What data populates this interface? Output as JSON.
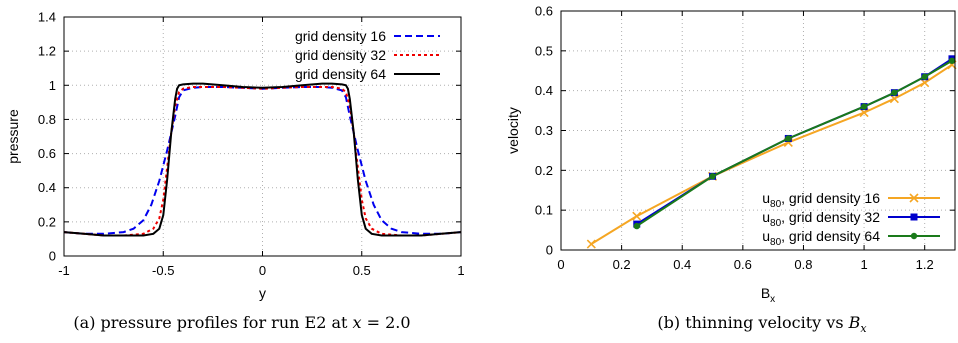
{
  "chart_data": [
    {
      "type": "line",
      "title": "",
      "xlabel": "y",
      "ylabel": "pressure",
      "xlim": [
        -1,
        1
      ],
      "ylim": [
        0,
        1.4
      ],
      "xticks": [
        -1,
        -0.5,
        0,
        0.5,
        1
      ],
      "xtick_labels": [
        "-1",
        "-0.5",
        "0",
        "0.5",
        "1"
      ],
      "yticks": [
        0,
        0.2,
        0.4,
        0.6,
        0.8,
        1,
        1.2,
        1.4
      ],
      "ytick_labels": [
        "0",
        "0.2",
        "0.4",
        "0.6",
        "0.8",
        "1",
        "1.2",
        "1.4"
      ],
      "grid": true,
      "legend_position": "top-right",
      "caption": "(a) pressure profiles for run E2 at x = 2.0",
      "series": [
        {
          "name": "grid density 16",
          "color": "#0000ee",
          "style": "dashed",
          "x": [
            -1,
            -0.9,
            -0.8,
            -0.7,
            -0.65,
            -0.6,
            -0.56,
            -0.52,
            -0.48,
            -0.44,
            -0.42,
            -0.4,
            -0.35,
            -0.3,
            -0.2,
            -0.1,
            0,
            0.1,
            0.2,
            0.3,
            0.35,
            0.4,
            0.42,
            0.44,
            0.48,
            0.52,
            0.56,
            0.6,
            0.65,
            0.7,
            0.8,
            0.9,
            1
          ],
          "y": [
            0.14,
            0.13,
            0.13,
            0.14,
            0.16,
            0.21,
            0.3,
            0.44,
            0.62,
            0.82,
            0.93,
            0.97,
            0.985,
            0.99,
            0.99,
            0.985,
            0.98,
            0.985,
            0.99,
            0.99,
            0.985,
            0.97,
            0.93,
            0.82,
            0.62,
            0.44,
            0.3,
            0.21,
            0.16,
            0.14,
            0.13,
            0.13,
            0.14
          ]
        },
        {
          "name": "grid density 32",
          "color": "#ee0000",
          "style": "dotted",
          "x": [
            -1,
            -0.9,
            -0.8,
            -0.7,
            -0.6,
            -0.55,
            -0.52,
            -0.5,
            -0.48,
            -0.46,
            -0.44,
            -0.42,
            -0.4,
            -0.35,
            -0.3,
            -0.2,
            -0.1,
            0,
            0.1,
            0.2,
            0.3,
            0.35,
            0.4,
            0.42,
            0.44,
            0.46,
            0.48,
            0.5,
            0.52,
            0.55,
            0.6,
            0.7,
            0.8,
            0.9,
            1
          ],
          "y": [
            0.14,
            0.13,
            0.12,
            0.12,
            0.13,
            0.16,
            0.22,
            0.33,
            0.52,
            0.72,
            0.88,
            0.96,
            0.98,
            0.99,
            0.99,
            0.99,
            0.985,
            0.98,
            0.985,
            0.99,
            0.99,
            0.99,
            0.98,
            0.96,
            0.88,
            0.72,
            0.52,
            0.33,
            0.22,
            0.16,
            0.13,
            0.12,
            0.12,
            0.13,
            0.14
          ]
        },
        {
          "name": "grid density 64",
          "color": "#000000",
          "style": "solid",
          "x": [
            -1,
            -0.9,
            -0.8,
            -0.7,
            -0.6,
            -0.55,
            -0.52,
            -0.5,
            -0.48,
            -0.46,
            -0.44,
            -0.43,
            -0.42,
            -0.4,
            -0.35,
            -0.3,
            -0.2,
            -0.1,
            0,
            0.1,
            0.2,
            0.3,
            0.35,
            0.4,
            0.42,
            0.43,
            0.44,
            0.46,
            0.48,
            0.5,
            0.52,
            0.55,
            0.6,
            0.7,
            0.8,
            0.9,
            1
          ],
          "y": [
            0.14,
            0.13,
            0.12,
            0.12,
            0.12,
            0.13,
            0.16,
            0.24,
            0.45,
            0.72,
            0.92,
            0.98,
            1.0,
            1.005,
            1.01,
            1.01,
            1.0,
            0.99,
            0.985,
            0.99,
            1.0,
            1.01,
            1.01,
            1.005,
            1.0,
            0.98,
            0.92,
            0.72,
            0.45,
            0.24,
            0.16,
            0.13,
            0.12,
            0.12,
            0.12,
            0.13,
            0.14
          ]
        }
      ]
    },
    {
      "type": "line",
      "title": "",
      "xlabel": "Bx",
      "ylabel": "velocity",
      "xlim": [
        0,
        1.3
      ],
      "ylim": [
        0,
        0.6
      ],
      "xticks": [
        0,
        0.2,
        0.4,
        0.6,
        0.8,
        1,
        1.2
      ],
      "xtick_labels": [
        "0",
        "0.2",
        "0.4",
        "0.6",
        "0.8",
        "1",
        "1.2"
      ],
      "yticks": [
        0,
        0.1,
        0.2,
        0.3,
        0.4,
        0.5,
        0.6
      ],
      "ytick_labels": [
        "0",
        "0.1",
        "0.2",
        "0.3",
        "0.4",
        "0.5",
        "0.6"
      ],
      "grid": true,
      "legend_position": "bottom-right",
      "caption": "(b) thinning velocity vs Bx",
      "series": [
        {
          "name": "u80, grid density 16",
          "color": "#f5a623",
          "marker": "x",
          "x": [
            0.1,
            0.25,
            0.5,
            0.75,
            1.0,
            1.1,
            1.2,
            1.29
          ],
          "y": [
            0.015,
            0.085,
            0.185,
            0.27,
            0.345,
            0.38,
            0.42,
            0.465
          ]
        },
        {
          "name": "u80, grid density 32",
          "color": "#0000cc",
          "marker": "square",
          "x": [
            0.25,
            0.5,
            0.75,
            1.0,
            1.1,
            1.2,
            1.29
          ],
          "y": [
            0.065,
            0.185,
            0.28,
            0.36,
            0.395,
            0.435,
            0.48
          ]
        },
        {
          "name": "u80, grid density 64",
          "color": "#1a7a1a",
          "marker": "circle",
          "x": [
            0.25,
            0.5,
            0.75,
            1.0,
            1.1,
            1.2,
            1.29
          ],
          "y": [
            0.06,
            0.185,
            0.28,
            0.36,
            0.395,
            0.435,
            0.475
          ]
        }
      ]
    }
  ]
}
